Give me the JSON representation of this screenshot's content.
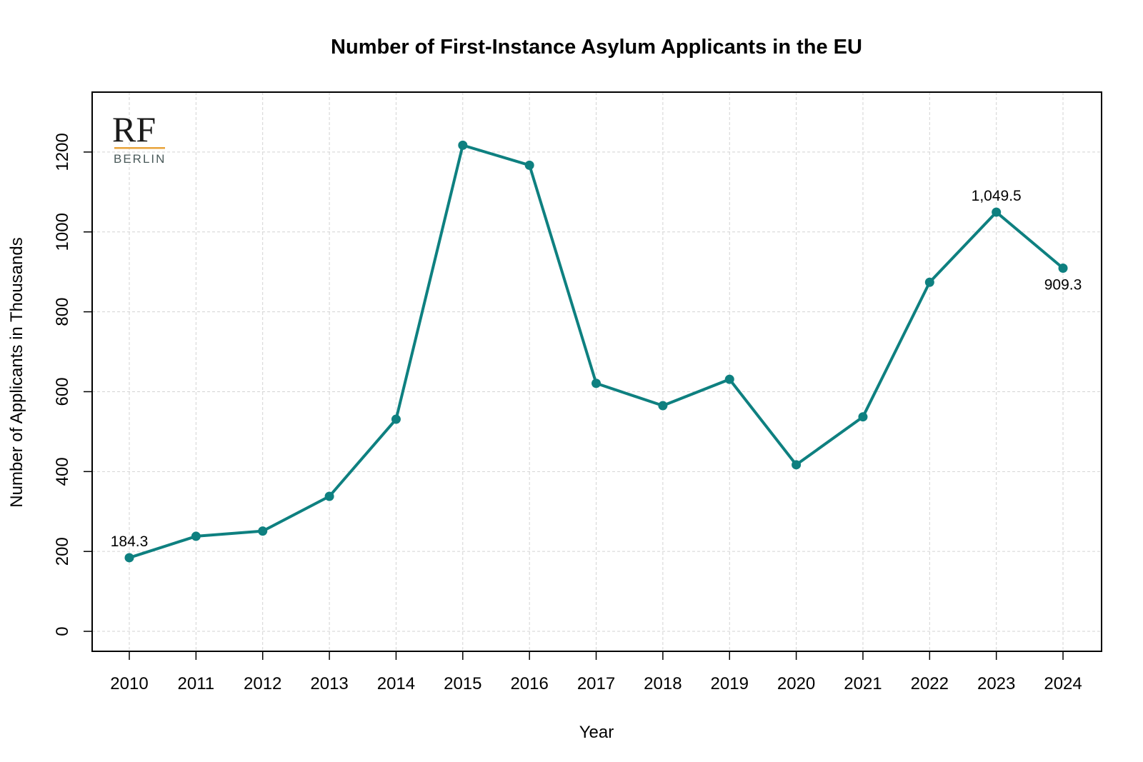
{
  "chart_data": {
    "type": "line",
    "title": "Number of First-Instance Asylum Applicants in the EU",
    "xlabel": "Year",
    "ylabel": "Number of Applicants in Thousands",
    "x": [
      "2010",
      "2011",
      "2012",
      "2013",
      "2014",
      "2015",
      "2016",
      "2017",
      "2018",
      "2019",
      "2020",
      "2021",
      "2022",
      "2023",
      "2024"
    ],
    "series": [
      {
        "values": [
          184.3,
          238,
          251,
          338,
          531,
          1217,
          1167,
          621,
          565,
          631,
          417,
          537,
          874,
          1049.5,
          909.3
        ]
      }
    ],
    "ylim": [
      -50,
      1350
    ],
    "y_ticks": [
      "0",
      "200",
      "400",
      "600",
      "800",
      "1000",
      "1200"
    ],
    "y_tick_values": [
      0,
      200,
      400,
      600,
      800,
      1000,
      1200
    ],
    "annotations": [
      {
        "index": 0,
        "text": "184.3",
        "position": "above"
      },
      {
        "index": 13,
        "text": "1,049.5",
        "position": "above"
      },
      {
        "index": 14,
        "text": "909.3",
        "position": "below"
      }
    ],
    "grid": true,
    "line_color": "#0e8080"
  },
  "logo": {
    "main": "RF",
    "sub": "BERLIN",
    "accent_color": "#e8a33a"
  }
}
